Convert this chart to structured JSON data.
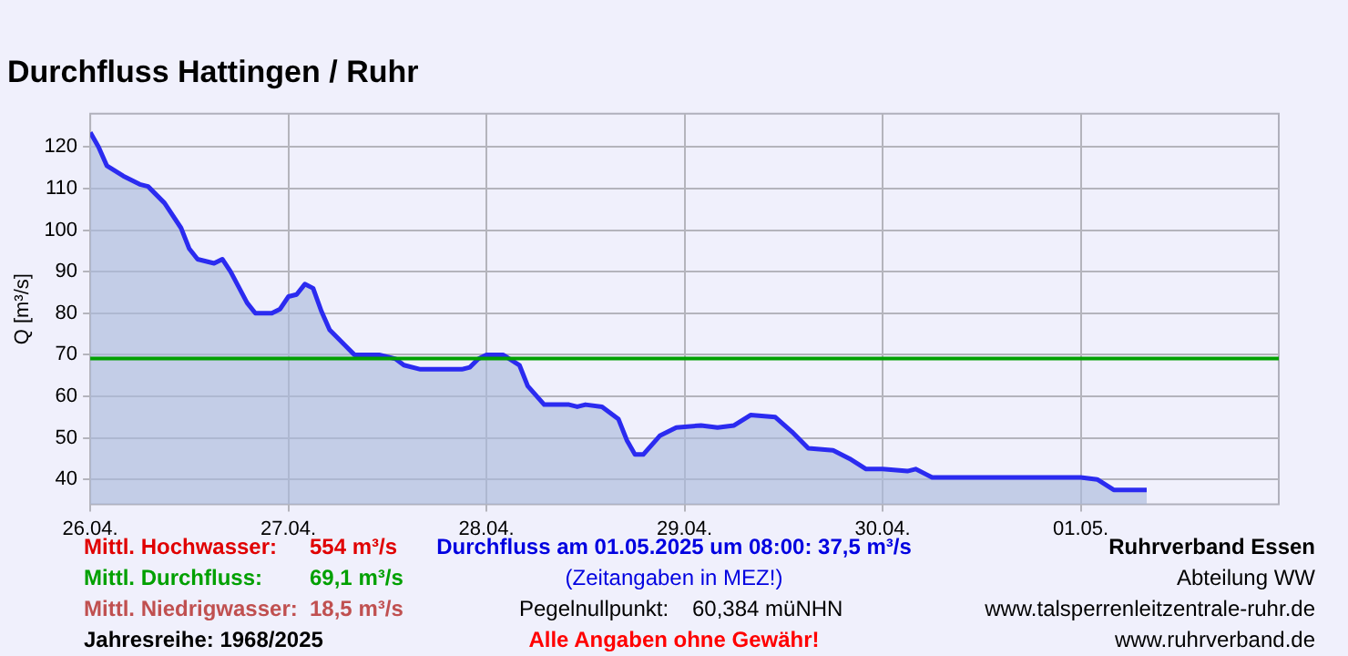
{
  "chart_data": {
    "type": "area",
    "title": "Durchfluss Hattingen / Ruhr",
    "ylabel": "Q [m³/s]",
    "x": [
      "2025-04-26T00:00",
      "2025-04-26T01:00",
      "2025-04-26T02:00",
      "2025-04-26T04:00",
      "2025-04-26T06:00",
      "2025-04-26T07:00",
      "2025-04-26T09:00",
      "2025-04-26T11:00",
      "2025-04-26T12:00",
      "2025-04-26T13:00",
      "2025-04-26T15:00",
      "2025-04-26T16:00",
      "2025-04-26T17:00",
      "2025-04-26T19:00",
      "2025-04-26T20:00",
      "2025-04-26T22:00",
      "2025-04-26T23:00",
      "2025-04-27T00:00",
      "2025-04-27T01:00",
      "2025-04-27T02:00",
      "2025-04-27T03:00",
      "2025-04-27T04:00",
      "2025-04-27T05:00",
      "2025-04-27T07:00",
      "2025-04-27T08:00",
      "2025-04-27T11:00",
      "2025-04-27T13:00",
      "2025-04-27T14:00",
      "2025-04-27T16:00",
      "2025-04-27T21:00",
      "2025-04-27T22:00",
      "2025-04-27T23:00",
      "2025-04-28T00:00",
      "2025-04-28T02:00",
      "2025-04-28T04:00",
      "2025-04-28T05:00",
      "2025-04-28T07:00",
      "2025-04-28T10:00",
      "2025-04-28T11:00",
      "2025-04-28T12:00",
      "2025-04-28T14:00",
      "2025-04-28T16:00",
      "2025-04-28T17:00",
      "2025-04-28T18:00",
      "2025-04-28T19:00",
      "2025-04-28T21:00",
      "2025-04-28T23:00",
      "2025-04-29T02:00",
      "2025-04-29T04:00",
      "2025-04-29T06:00",
      "2025-04-29T08:00",
      "2025-04-29T11:00",
      "2025-04-29T13:00",
      "2025-04-29T15:00",
      "2025-04-29T18:00",
      "2025-04-29T20:00",
      "2025-04-29T22:00",
      "2025-04-30T00:00",
      "2025-04-30T03:00",
      "2025-04-30T04:00",
      "2025-04-30T06:00",
      "2025-04-30T08:00",
      "2025-05-01T00:00",
      "2025-05-01T02:00",
      "2025-05-01T04:00",
      "2025-05-01T08:00"
    ],
    "series": [
      {
        "color": "#2b2bf0",
        "values": [
          123.5,
          120,
          115.5,
          113,
          111,
          110.5,
          106.5,
          100.5,
          95.5,
          93,
          92,
          93,
          90,
          82.5,
          80,
          80,
          81,
          84,
          84.5,
          87,
          86,
          80.5,
          76,
          72,
          70,
          70,
          69,
          67.5,
          66.5,
          66.5,
          67,
          69,
          70,
          70,
          67.5,
          62.5,
          58,
          58,
          57.5,
          58,
          57.5,
          54.5,
          49.5,
          46,
          46,
          50.5,
          52.5,
          53,
          52.5,
          53,
          55.5,
          55,
          51.5,
          47.5,
          47,
          45,
          42.5,
          42.5,
          42,
          42.5,
          40.5,
          40.5,
          40.5,
          40,
          37.5,
          37.5
        ]
      }
    ],
    "xlim": [
      "2025-04-26T00:00",
      "2025-05-02T00:00"
    ],
    "xticks": [
      {
        "value": "2025-04-26T00:00",
        "label": "26.04."
      },
      {
        "value": "2025-04-27T00:00",
        "label": "27.04."
      },
      {
        "value": "2025-04-28T00:00",
        "label": "28.04."
      },
      {
        "value": "2025-04-29T00:00",
        "label": "29.04."
      },
      {
        "value": "2025-04-30T00:00",
        "label": "30.04."
      },
      {
        "value": "2025-05-01T00:00",
        "label": "01.05."
      }
    ],
    "ylim": [
      34,
      128
    ],
    "yticks": [
      40,
      50,
      60,
      70,
      80,
      90,
      100,
      110,
      120
    ],
    "ref_lines": [
      {
        "axis": "y",
        "value": 69.1,
        "color": "#00a000"
      }
    ],
    "grid": true,
    "annotations": [
      "Mittl. Hochwasser:",
      "554 m³/s",
      "Mittl. Durchfluss:",
      "69,1 m³/s",
      "Mittl. Niedrigwasser:",
      "18,5 m³/s",
      "Jahresreihe: 1968/2025",
      "Durchfluss am 01.05.2025 um 08:00: 37,5 m³/s",
      "(Zeitangaben in MEZ!)",
      "Pegelnullpunkt:",
      "60,384 müNHN",
      "Alle Angaben ohne Gewähr!",
      "Ruhrverband Essen",
      "Abteilung WW",
      "www.talsperrenleitzentrale-ruhr.de",
      "www.ruhrverband.de"
    ]
  }
}
